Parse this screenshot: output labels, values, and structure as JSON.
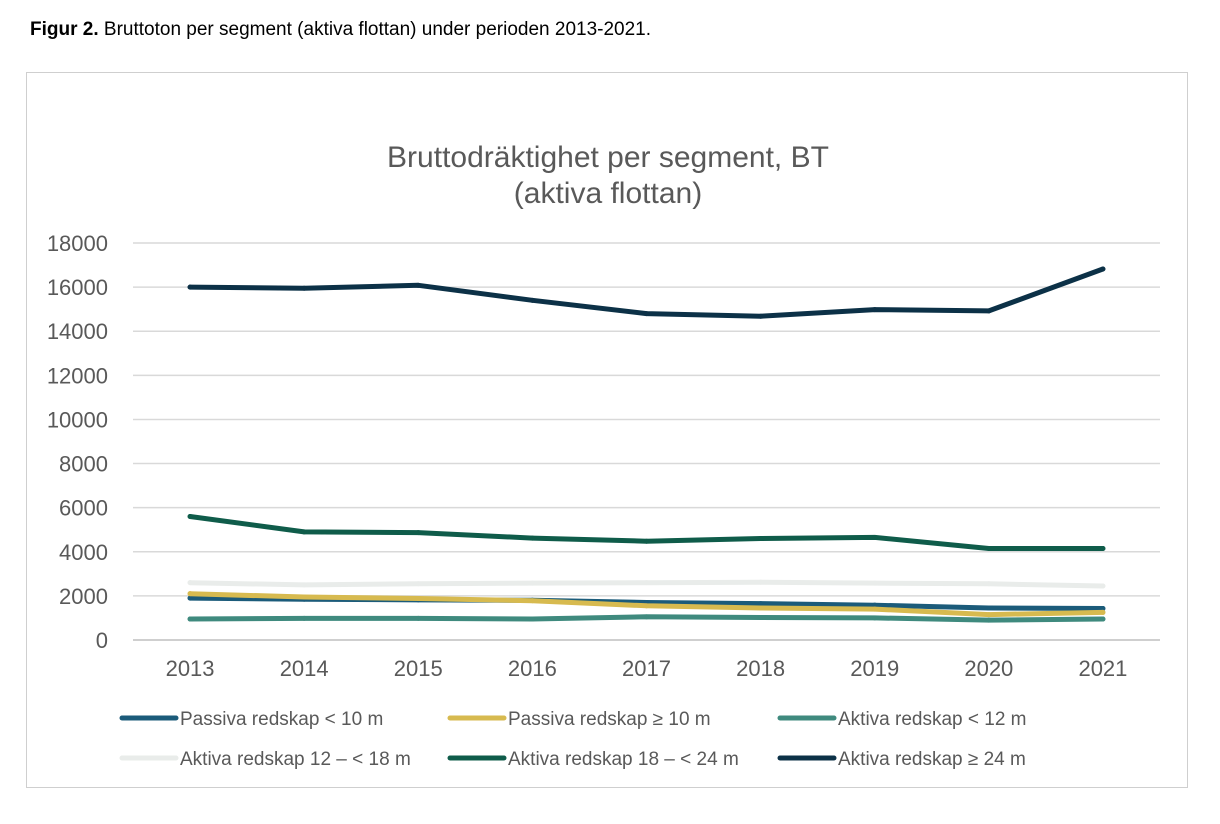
{
  "caption": {
    "label": "Figur 2.",
    "text": " Bruttoton per segment (aktiva flottan) under perioden 2013-2021."
  },
  "chart_data": {
    "type": "line",
    "title": [
      "Bruttodräktighet per segment, BT",
      "(aktiva flottan)"
    ],
    "xlabel": "",
    "ylabel": "",
    "x": [
      "2013",
      "2014",
      "2015",
      "2016",
      "2017",
      "2018",
      "2019",
      "2020",
      "2021"
    ],
    "ylim": [
      0,
      18000
    ],
    "yticks": [
      0,
      2000,
      4000,
      6000,
      8000,
      10000,
      12000,
      14000,
      16000,
      18000
    ],
    "grid": true,
    "legend_position": "bottom",
    "series": [
      {
        "name": "Passiva redskap < 10 m",
        "color": "#1b5b7a",
        "values": [
          1900,
          1850,
          1820,
          1800,
          1700,
          1650,
          1580,
          1450,
          1430
        ]
      },
      {
        "name": "Passiva redskap  ≥ 10 m",
        "color": "#d7ba4f",
        "values": [
          2100,
          1950,
          1880,
          1780,
          1550,
          1450,
          1400,
          1150,
          1250
        ]
      },
      {
        "name": "Aktiva redskap  < 12 m",
        "color": "#3f8a7e",
        "values": [
          950,
          980,
          980,
          950,
          1050,
          1020,
          1000,
          900,
          950
        ]
      },
      {
        "name": "Aktiva redskap  12 – < 18 m",
        "color": "#e9ecea",
        "values": [
          2600,
          2500,
          2550,
          2580,
          2600,
          2620,
          2580,
          2550,
          2450
        ]
      },
      {
        "name": "Aktiva redskap 18 – < 24 m",
        "color": "#0f5c4a",
        "values": [
          5600,
          4900,
          4870,
          4620,
          4480,
          4600,
          4650,
          4150,
          4150
        ]
      },
      {
        "name": "Aktiva redskap ≥ 24 m",
        "color": "#0c3147",
        "values": [
          16000,
          15950,
          16080,
          15400,
          14800,
          14680,
          14980,
          14920,
          16820
        ]
      }
    ]
  }
}
